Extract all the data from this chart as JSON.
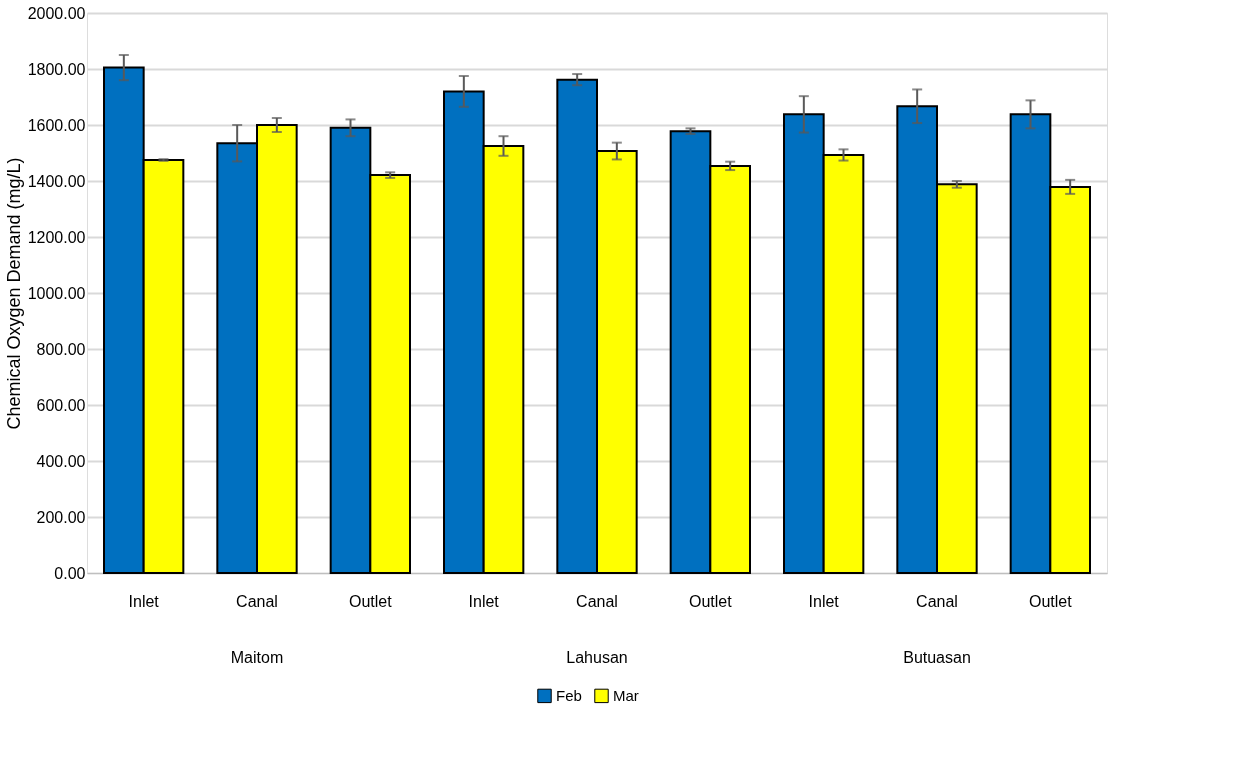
{
  "chart_data": {
    "type": "bar",
    "ylabel": "Chemical Oxygen Demand (mg/L)",
    "categories": [
      "Inlet",
      "Canal",
      "Outlet",
      "Inlet",
      "Canal",
      "Outlet",
      "Inlet",
      "Canal",
      "Outlet"
    ],
    "annotations": [
      "Maitom",
      "Lahusan",
      "Butuasan"
    ],
    "series": [
      {
        "name": "Feb",
        "color": "#0070c0",
        "values": [
          1805,
          1535,
          1590,
          1720,
          1762,
          1578,
          1638,
          1667,
          1638
        ],
        "errors": [
          45,
          65,
          30,
          55,
          20,
          10,
          65,
          60,
          50
        ]
      },
      {
        "name": "Mar",
        "color": "#ffff00",
        "values": [
          1475,
          1600,
          1421,
          1525,
          1507,
          1454,
          1493,
          1388,
          1379
        ],
        "errors": [
          3,
          25,
          10,
          35,
          30,
          15,
          20,
          12,
          25
        ]
      }
    ],
    "ylim": [
      0,
      2000
    ],
    "yticks": [
      {
        "value": 0,
        "label": "0.00"
      },
      {
        "value": 200,
        "label": "200.00"
      },
      {
        "value": 400,
        "label": "400.00"
      },
      {
        "value": 600,
        "label": "600.00"
      },
      {
        "value": 800,
        "label": "800.00"
      },
      {
        "value": 1000,
        "label": "1000.00"
      },
      {
        "value": 1200,
        "label": "1200.00"
      },
      {
        "value": 1400,
        "label": "1400.00"
      },
      {
        "value": 1600,
        "label": "1600.00"
      },
      {
        "value": 1800,
        "label": "1800.00"
      },
      {
        "value": 2000,
        "label": "2000.00"
      }
    ],
    "grid": "y",
    "legend": "bottom"
  }
}
